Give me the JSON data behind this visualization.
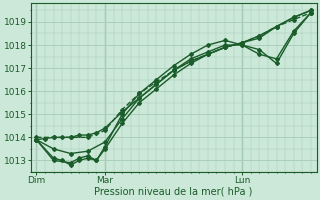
{
  "bg_color": "#cce8d8",
  "grid_color": "#aacfba",
  "line_color": "#1a5c2a",
  "tick_color": "#1a5c2a",
  "ylim": [
    1012.5,
    1019.8
  ],
  "yticks": [
    1013,
    1014,
    1015,
    1016,
    1017,
    1018,
    1019
  ],
  "xlabel": "Pression niveau de la mer( hPa )",
  "xtick_labels": [
    "Dim",
    "Mar",
    "Lun"
  ],
  "xtick_positions": [
    0,
    48,
    144
  ],
  "xlim": [
    -4,
    196
  ],
  "series": [
    {
      "x": [
        0,
        6,
        12,
        18,
        24,
        30,
        36,
        42,
        48,
        60,
        72,
        84,
        96,
        108,
        120,
        132,
        144,
        156,
        168,
        180,
        192
      ],
      "y": [
        1013.9,
        1013.95,
        1014.0,
        1014.0,
        1014.0,
        1014.1,
        1014.1,
        1014.2,
        1014.4,
        1015.1,
        1015.7,
        1016.3,
        1016.9,
        1017.3,
        1017.6,
        1017.9,
        1018.1,
        1018.3,
        1018.8,
        1019.2,
        1019.5
      ],
      "marker": "D",
      "markersize": 2.0,
      "lw": 1.0,
      "dashed": false
    },
    {
      "x": [
        0,
        12,
        18,
        24,
        30,
        36,
        42,
        48,
        60,
        72,
        84,
        96,
        108,
        120,
        132,
        144,
        156,
        168,
        180,
        192
      ],
      "y": [
        1013.9,
        1013.1,
        1013.0,
        1012.8,
        1013.0,
        1013.1,
        1013.0,
        1013.5,
        1014.6,
        1015.5,
        1016.1,
        1016.7,
        1017.2,
        1017.6,
        1017.9,
        1018.1,
        1018.4,
        1018.8,
        1019.2,
        1019.5
      ],
      "marker": "D",
      "markersize": 2.0,
      "lw": 1.0,
      "dashed": false
    },
    {
      "x": [
        0,
        12,
        24,
        30,
        36,
        42,
        48,
        60,
        72,
        84,
        96,
        108,
        120,
        132,
        144,
        156,
        168,
        180,
        192
      ],
      "y": [
        1013.9,
        1013.0,
        1012.9,
        1013.1,
        1013.2,
        1013.0,
        1013.6,
        1015.0,
        1015.9,
        1016.5,
        1017.1,
        1017.6,
        1018.0,
        1018.2,
        1018.0,
        1017.8,
        1017.2,
        1018.5,
        1019.4
      ],
      "marker": "D",
      "markersize": 2.0,
      "lw": 1.0,
      "dashed": false
    },
    {
      "x": [
        0,
        12,
        24,
        36,
        48,
        60,
        72,
        84,
        96,
        108,
        120,
        132,
        144,
        156,
        168,
        180,
        192
      ],
      "y": [
        1014.0,
        1014.0,
        1014.0,
        1014.0,
        1014.3,
        1015.2,
        1015.9,
        1016.4,
        1016.9,
        1017.3,
        1017.6,
        1017.9,
        1018.1,
        1018.4,
        1018.8,
        1019.1,
        1019.4
      ],
      "marker": "D",
      "markersize": 2.0,
      "lw": 1.0,
      "dashed": true
    },
    {
      "x": [
        0,
        12,
        24,
        36,
        48,
        60,
        72,
        84,
        96,
        108,
        120,
        132,
        144,
        156,
        168,
        180,
        192
      ],
      "y": [
        1013.9,
        1013.5,
        1013.3,
        1013.4,
        1013.8,
        1014.8,
        1015.7,
        1016.3,
        1016.9,
        1017.4,
        1017.7,
        1018.0,
        1018.0,
        1017.6,
        1017.4,
        1018.6,
        1019.4
      ],
      "marker": "D",
      "markersize": 2.0,
      "lw": 1.0,
      "dashed": false
    }
  ]
}
